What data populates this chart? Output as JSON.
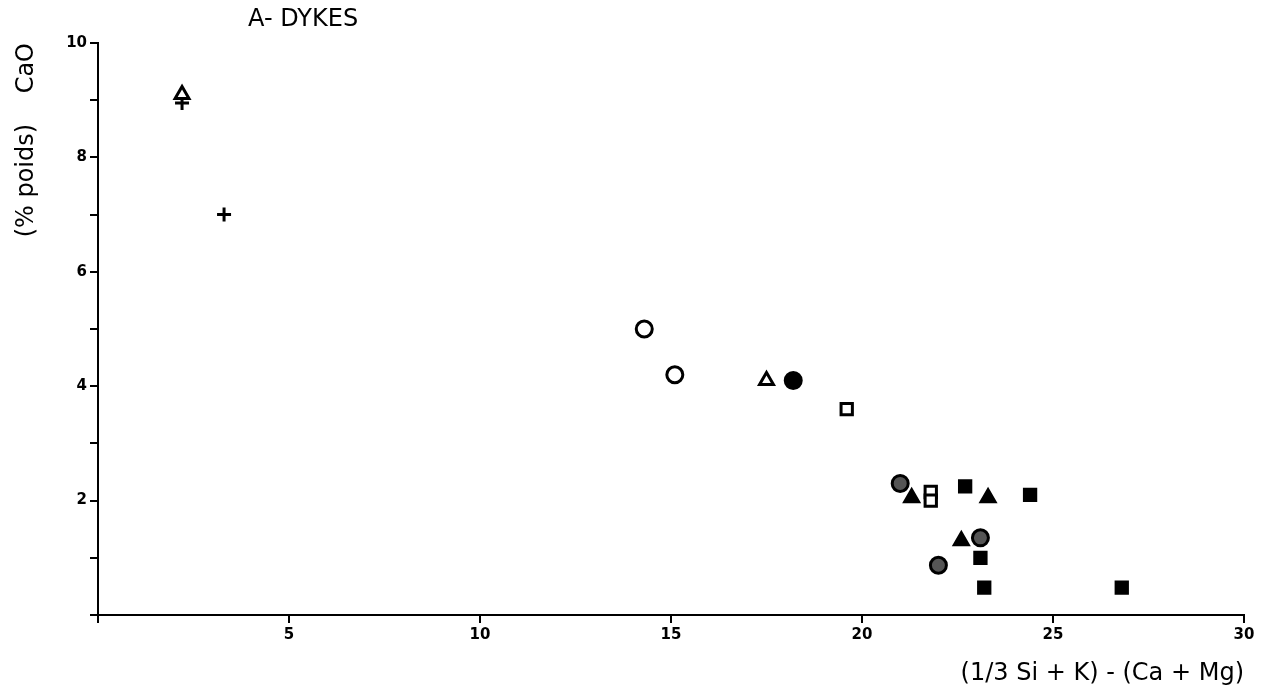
{
  "chart_data": {
    "type": "scatter",
    "title": "A- DYKES",
    "xlabel": "(1/3 Si + K) - (Ca + Mg)",
    "ylabel": "(% poids)    CaO",
    "xlim": [
      0,
      30
    ],
    "xticks": [
      {
        "value": 0,
        "label": null
      },
      5,
      10,
      15,
      20,
      25,
      30
    ],
    "ylim": [
      0,
      10
    ],
    "yticks": [
      {
        "value": 0,
        "label": null
      },
      {
        "value": 1,
        "label": null
      },
      2,
      {
        "value": 3,
        "label": null
      },
      4,
      {
        "value": 5,
        "label": null
      },
      6,
      {
        "value": 7,
        "label": null
      },
      8,
      {
        "value": 9,
        "label": null
      },
      10
    ],
    "grid": false,
    "legend": false,
    "series": [
      {
        "color": "#ffffff",
        "marker": "triangle",
        "x": [
          2.2,
          17.5
        ],
        "values": [
          9.1,
          4.1
        ]
      },
      {
        "color": "#000000",
        "marker": "cross",
        "x": [
          2.2,
          3.3
        ],
        "values": [
          8.95,
          7.0
        ]
      },
      {
        "color": "#ffffff",
        "marker": "circle",
        "x": [
          14.3,
          15.1
        ],
        "values": [
          5.0,
          4.2
        ]
      },
      {
        "color": "#000000",
        "marker": "circle",
        "x": [
          18.2
        ],
        "values": [
          4.1
        ]
      },
      {
        "color": "#ffffff",
        "marker": "square",
        "x": [
          19.6,
          21.8,
          21.8
        ],
        "values": [
          3.6,
          2.15,
          2.0
        ]
      },
      {
        "color": "#555555",
        "marker": "circle",
        "x": [
          21.0,
          23.1,
          22.0
        ],
        "values": [
          2.3,
          1.35,
          0.87
        ]
      },
      {
        "color": "#000000",
        "marker": "triangle",
        "x": [
          21.3,
          23.3,
          22.6
        ],
        "values": [
          2.05,
          2.05,
          1.3
        ]
      },
      {
        "color": "#000000",
        "marker": "square",
        "x": [
          22.7,
          24.4,
          23.1,
          23.2,
          26.8
        ],
        "values": [
          2.25,
          2.1,
          1.0,
          0.48,
          0.48
        ]
      }
    ]
  }
}
